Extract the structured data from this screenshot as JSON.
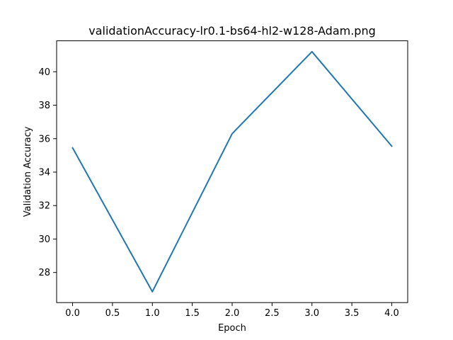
{
  "chart_data": {
    "type": "line",
    "title": "validationAccuracy-lr0.1-bs64-hl2-w128-Adam.png",
    "xlabel": "Epoch",
    "ylabel": "Validation Accuracy",
    "x": [
      0,
      1,
      2,
      3,
      4
    ],
    "series": [
      {
        "values": [
          35.45,
          26.85,
          36.3,
          41.2,
          35.55
        ],
        "color": "#1f77b4"
      }
    ],
    "xlim": [
      -0.2,
      4.2
    ],
    "ylim": [
      26.2,
      41.85
    ],
    "x_ticks": [
      0.0,
      0.5,
      1.0,
      1.5,
      2.0,
      2.5,
      3.0,
      3.5,
      4.0
    ],
    "x_tick_labels": [
      "0.0",
      "0.5",
      "1.0",
      "1.5",
      "2.0",
      "2.5",
      "3.0",
      "3.5",
      "4.0"
    ],
    "y_ticks": [
      28,
      30,
      32,
      34,
      36,
      38,
      40
    ],
    "y_tick_labels": [
      "28",
      "30",
      "32",
      "34",
      "36",
      "38",
      "40"
    ],
    "grid": false,
    "legend": "none"
  }
}
